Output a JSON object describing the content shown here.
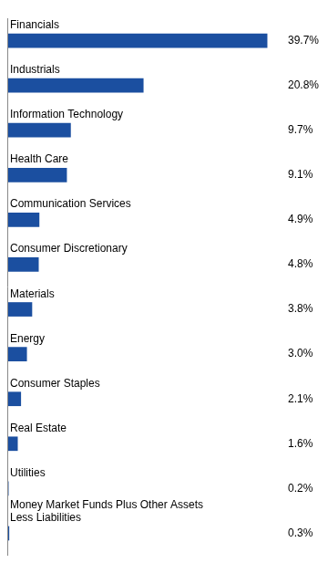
{
  "chart_data": {
    "type": "bar",
    "orientation": "horizontal",
    "categories": [
      "Financials",
      "Industrials",
      "Information Technology",
      "Health Care",
      "Communication Services",
      "Consumer Discretionary",
      "Materials",
      "Energy",
      "Consumer Staples",
      "Real Estate",
      "Utilities",
      "Money Market Funds Plus Other Assets\nLess Liabilities"
    ],
    "values": [
      39.7,
      20.8,
      9.7,
      9.1,
      4.9,
      4.8,
      3.8,
      3.0,
      2.1,
      1.6,
      0.2,
      0.3
    ],
    "value_labels": [
      "39.7%",
      "20.8%",
      "9.7%",
      "9.1%",
      "4.9%",
      "4.8%",
      "3.8%",
      "3.0%",
      "2.1%",
      "1.6%",
      "0.2%",
      "0.3%"
    ],
    "color": "#1B4FA0",
    "xlim": [
      0,
      42
    ],
    "data_labels": true,
    "tick_labels": false,
    "grid": false
  }
}
